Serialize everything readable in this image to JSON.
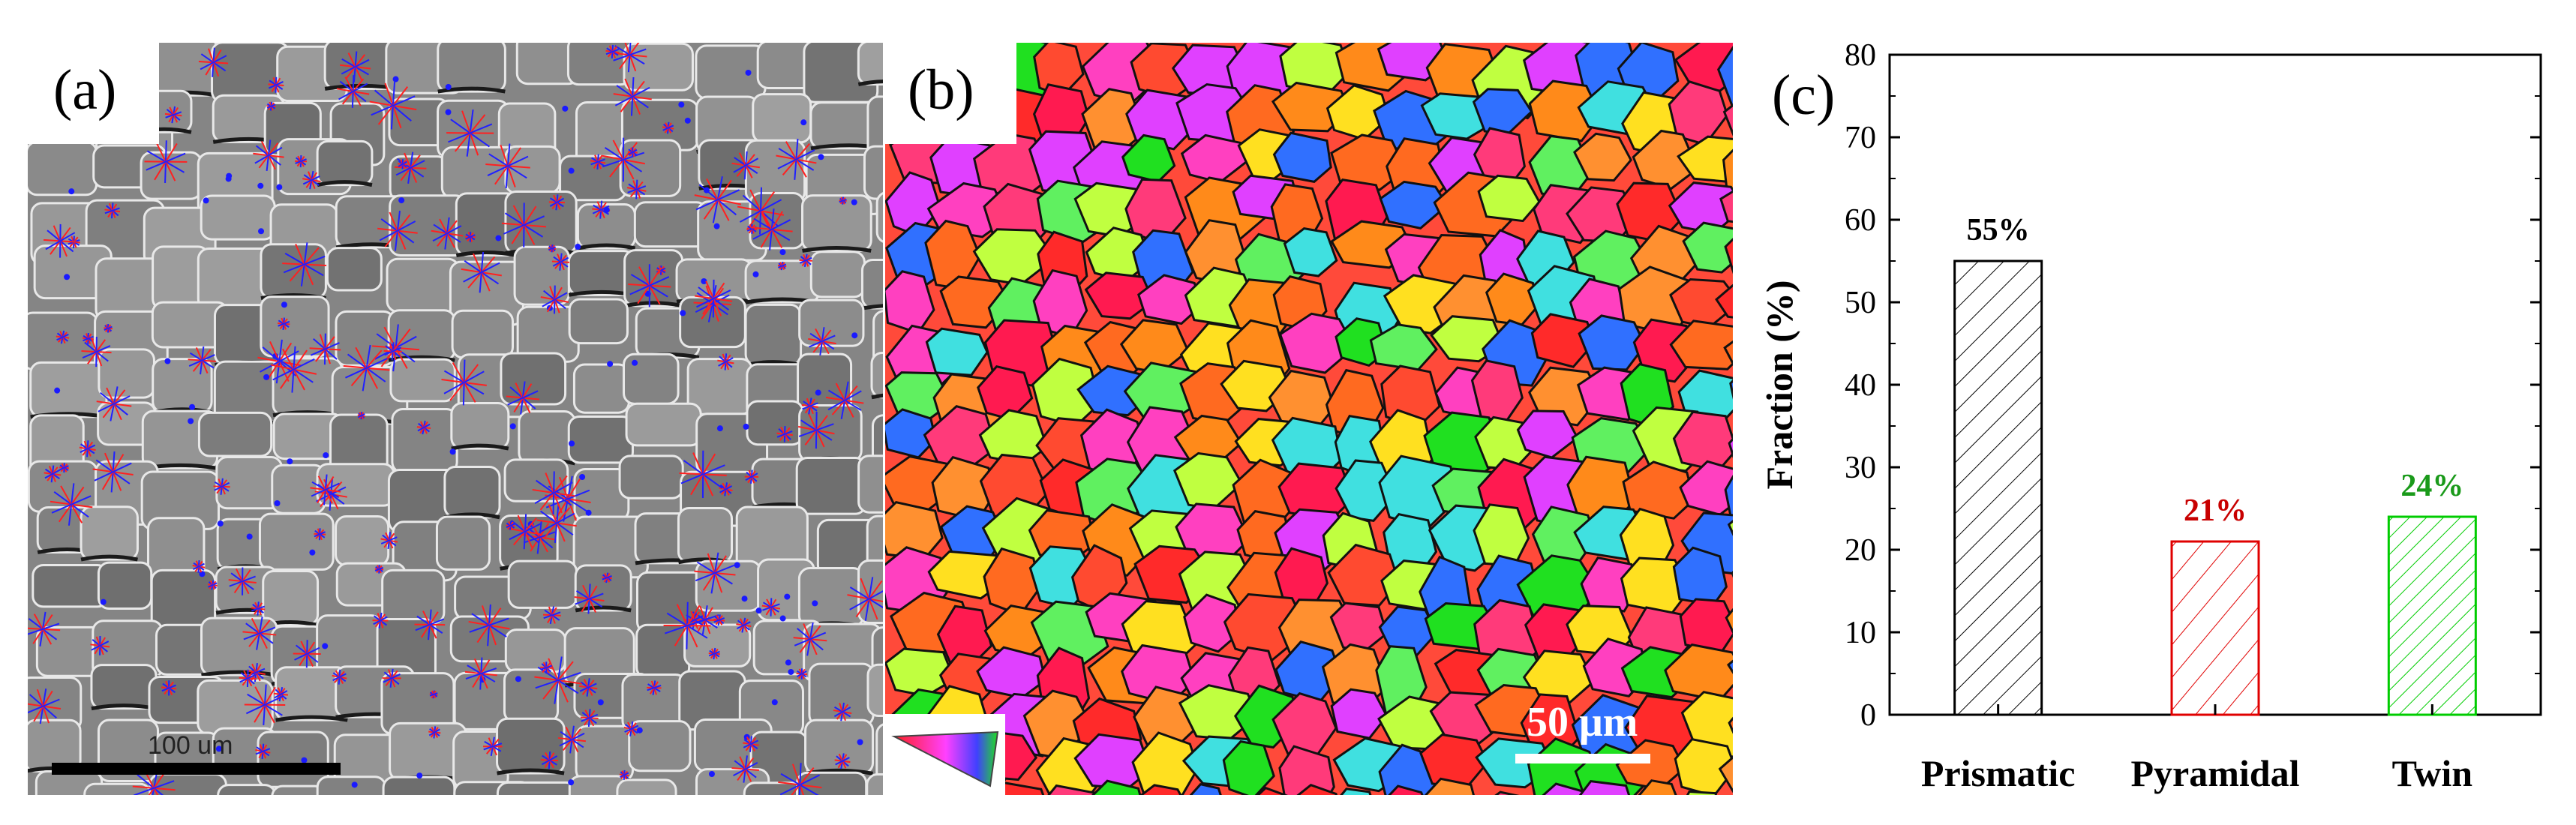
{
  "panels": {
    "a": {
      "label": "(a)",
      "scale_bar_text": "100 um"
    },
    "b": {
      "label": "(b)",
      "scale_bar_text": "50 μm"
    },
    "c": {
      "label": "(c)"
    }
  },
  "chart_data": {
    "type": "bar",
    "categories": [
      "Prismatic",
      "Pyramidal",
      "Twin"
    ],
    "values": [
      55,
      21,
      24
    ],
    "data_labels": [
      "55%",
      "21%",
      "24%"
    ],
    "colors": [
      "#000000",
      "#e00000",
      "#00cc00"
    ],
    "label_colors": [
      "#000000",
      "#c80000",
      "#1a9a1a"
    ],
    "hatch": "diagonal",
    "xlabel": "",
    "ylabel": "Fraction (%)",
    "ylim": [
      0,
      80
    ],
    "yticks": [
      0,
      10,
      20,
      30,
      40,
      50,
      60,
      70,
      80
    ],
    "grid": false,
    "legend": "none"
  }
}
